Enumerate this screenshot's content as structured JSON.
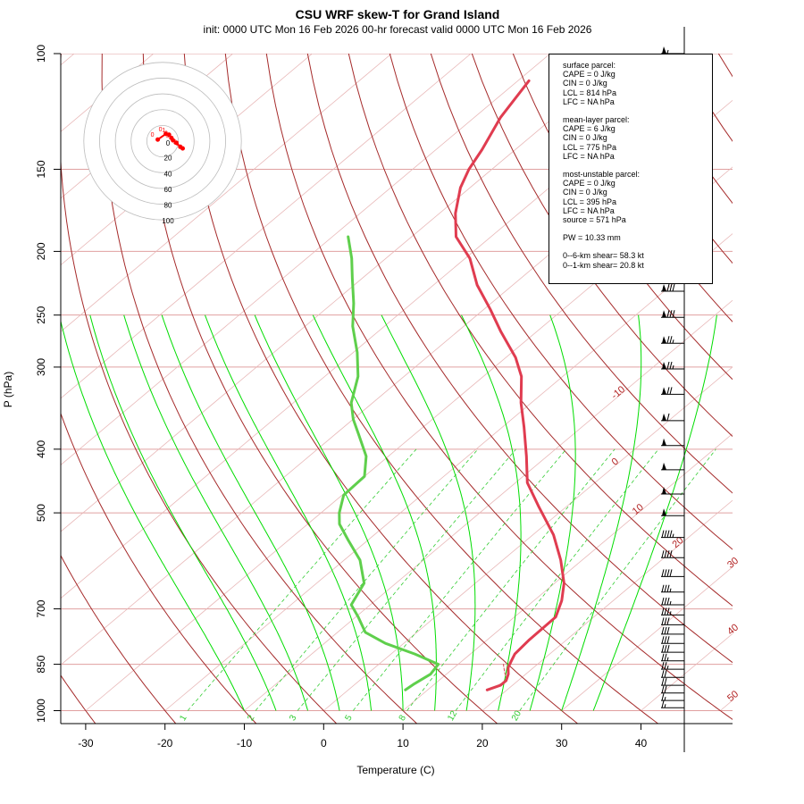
{
  "header": {
    "title": "CSU WRF skew-T for Grand Island",
    "subtitle": "init: 0000 UTC Mon 16 Feb 2026     00-hr forecast valid 0000 UTC Mon 16 Feb 2026"
  },
  "info_box": {
    "surface": [
      "surface parcel:",
      "CAPE = 0 J/kg",
      "CIN = 0 J/kg",
      "LCL = 814 hPa",
      "LFC = NA hPa"
    ],
    "mean_layer": [
      "mean-layer parcel:",
      "CAPE = 6 J/kg",
      "CIN = 0 J/kg",
      "LCL = 775 hPa",
      "LFC = NA hPa"
    ],
    "most_unstable": [
      "most-unstable parcel:",
      "CAPE = 0 J/kg",
      "CIN = 0 J/kg",
      "LCL = 395 hPa",
      "LFC = NA hPa",
      "source = 571 hPa"
    ],
    "pw": [
      "PW =  10.33 mm"
    ],
    "shear": [
      "0--6-km shear= 58.3 kt",
      "0--1-km shear= 20.8 kt"
    ]
  },
  "chart_data": {
    "type": "line",
    "xlabel": "Temperature (C)",
    "ylabel": "P (hPa)",
    "x_ticks": [
      -30,
      -20,
      -10,
      0,
      10,
      20,
      30,
      40
    ],
    "y_ticks": [
      100,
      150,
      200,
      250,
      300,
      400,
      500,
      700,
      850,
      1000
    ],
    "xlim": [
      -33,
      51
    ],
    "ylim": [
      1000,
      100
    ],
    "y_scale": "log",
    "isotherm_labels": [
      -10,
      0,
      10,
      20,
      30,
      40,
      50
    ],
    "mixing_ratio_labels": [
      1,
      2,
      3,
      5,
      8,
      12,
      20
    ],
    "series": [
      {
        "name": "temperature",
        "color": "#e03c50",
        "pressure": [
          930,
          915,
          900,
          880,
          860,
          840,
          820,
          780,
          720,
          680,
          640,
          590,
          540,
          490,
          450,
          410,
          370,
          340,
          310,
          290,
          265,
          245,
          225,
          205,
          190,
          175,
          160,
          150,
          140,
          125,
          110
        ],
        "temp": [
          17.5,
          18.5,
          18.5,
          17.8,
          16.8,
          16.2,
          15.6,
          15.3,
          15.2,
          13.5,
          11.2,
          7.3,
          2.6,
          -3.4,
          -8.5,
          -12.6,
          -17.3,
          -21.3,
          -25.2,
          -28.8,
          -34.5,
          -39.2,
          -44.5,
          -49.4,
          -54.4,
          -58.0,
          -61.2,
          -62.9,
          -64.2,
          -66.7,
          -68.6
        ]
      },
      {
        "name": "dewpoint",
        "color": "#5fcf4c",
        "pressure": [
          930,
          910,
          880,
          850,
          820,
          790,
          760,
          720,
          690,
          640,
          590,
          550,
          520,
          500,
          470,
          440,
          410,
          380,
          360,
          340,
          310,
          285,
          260,
          240,
          220,
          205,
          190
        ],
        "dewpoint": [
          7.2,
          7.4,
          8.0,
          7.5,
          3.0,
          -2.3,
          -6.5,
          -9.7,
          -12.4,
          -14.0,
          -18.0,
          -22.5,
          -26.0,
          -27.7,
          -29.8,
          -30.0,
          -32.8,
          -37.0,
          -40.0,
          -42.7,
          -45.8,
          -49.5,
          -54.0,
          -57.3,
          -61.2,
          -64.3,
          -68.0
        ]
      },
      {
        "name": "parcel",
        "color": "#d94452",
        "pressure": [
          925,
          900,
          875,
          850
        ],
        "temp": [
          17.9,
          18.6,
          17.1,
          15.7
        ]
      }
    ],
    "hodograph": {
      "rings": [
        20,
        40,
        60,
        80,
        100
      ],
      "points": [
        {
          "label": "0",
          "u": -6,
          "v": 2
        },
        {
          "label": "0",
          "u": 4,
          "v": 9
        },
        {
          "label": "1",
          "u": 8,
          "v": 8
        },
        {
          "label": "2",
          "u": 11,
          "v": 4
        },
        {
          "label": "3",
          "u": 13,
          "v": 1
        },
        {
          "label": "4",
          "u": 17,
          "v": -2
        },
        {
          "label": "5",
          "u": 22,
          "v": -7
        },
        {
          "label": "6",
          "u": 25,
          "v": -9
        }
      ]
    },
    "wind_barbs": {
      "pressure": [
        100,
        110,
        120,
        132,
        145,
        160,
        175,
        192,
        210,
        230,
        252,
        276,
        302,
        330,
        362,
        395,
        430,
        468,
        505,
        545,
        585,
        625,
        660,
        690,
        715,
        740,
        765,
        790,
        815,
        840,
        865,
        890,
        915,
        940,
        965,
        990
      ],
      "speed_kt": [
        55,
        55,
        55,
        60,
        70,
        75,
        75,
        80,
        80,
        80,
        80,
        75,
        75,
        70,
        60,
        50,
        50,
        50,
        50,
        45,
        40,
        40,
        35,
        35,
        35,
        30,
        30,
        30,
        30,
        25,
        25,
        20,
        20,
        20,
        15,
        15
      ]
    }
  }
}
